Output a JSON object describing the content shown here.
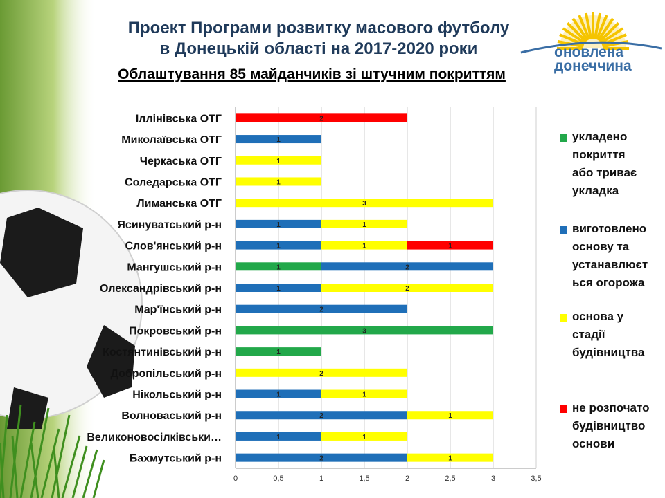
{
  "header": {
    "title_line1": "Проект Програми розвитку масового футболу",
    "title_line2": "в Донецькій області на 2017-2020 роки",
    "subtitle": "Облаштування 85 майданчиків зі штучним покриттям"
  },
  "logo": {
    "line1": "оновлена",
    "line2": "донеччина",
    "sun_color": "#f5c400",
    "text_color": "#3a6ea5"
  },
  "colors": {
    "green": "#22a84a",
    "blue": "#1f6fb8",
    "yellow": "#ffff00",
    "red": "#ff0000"
  },
  "chart_data": {
    "type": "bar",
    "orientation": "horizontal",
    "stacked": true,
    "categories": [
      "Іллінівська ОТГ",
      "Миколаївська ОТГ",
      "Черкаська ОТГ",
      "Соледарська ОТГ",
      "Лиманська ОТГ",
      "Ясинуватський р-н",
      "Слов'янський р-н",
      "Мангушський р-н",
      "Олександрівський р-н",
      "Мар'їнський р-н",
      "Покровський р-н",
      "Костянтинівський р-н",
      "Добропільський р-н",
      "Нікольський р-н",
      "Волноваський р-н",
      "Великоновосілківськи…",
      "Бахмутський р-н"
    ],
    "series": [
      {
        "name": "укладено покриття або триває укладка",
        "color": "#22a84a",
        "values": [
          0,
          0,
          0,
          0,
          0,
          0,
          0,
          1,
          0,
          0,
          3,
          1,
          0,
          0,
          0,
          0,
          0
        ]
      },
      {
        "name": "виготовлено основу та устанавлюється огорожа",
        "color": "#1f6fb8",
        "values": [
          0,
          1,
          0,
          0,
          0,
          1,
          1,
          2,
          1,
          2,
          0,
          0,
          0,
          1,
          2,
          1,
          2
        ]
      },
      {
        "name": "основа у стадії будівництва",
        "color": "#ffff00",
        "values": [
          0,
          0,
          1,
          1,
          3,
          1,
          1,
          0,
          2,
          0,
          0,
          0,
          2,
          1,
          1,
          1,
          1
        ]
      },
      {
        "name": "не розпочато будівництво основи",
        "color": "#ff0000",
        "values": [
          2,
          0,
          0,
          0,
          0,
          0,
          1,
          0,
          0,
          0,
          0,
          0,
          0,
          0,
          0,
          0,
          0
        ]
      }
    ],
    "xlim": [
      0,
      3.5
    ],
    "x_ticks": [
      "0",
      "0,5",
      "1",
      "1,5",
      "2",
      "2,5",
      "3",
      "3,5"
    ],
    "x_tick_values": [
      0,
      0.5,
      1,
      1.5,
      2,
      2.5,
      3,
      3.5
    ],
    "grid": true,
    "legend_position": "right",
    "legend": [
      {
        "text": "укладено\nпокриття\nабо триває\nукладка",
        "color": "#22a84a"
      },
      {
        "text": "виготовлено\nоснову та\nустанавлюєт\nься огорожа",
        "color": "#1f6fb8"
      },
      {
        "text": "основа у\nстадії\nбудівництва",
        "color": "#ffff00"
      },
      {
        "text": "не розпочато\nбудівництво\nоснови",
        "color": "#ff0000"
      }
    ]
  }
}
